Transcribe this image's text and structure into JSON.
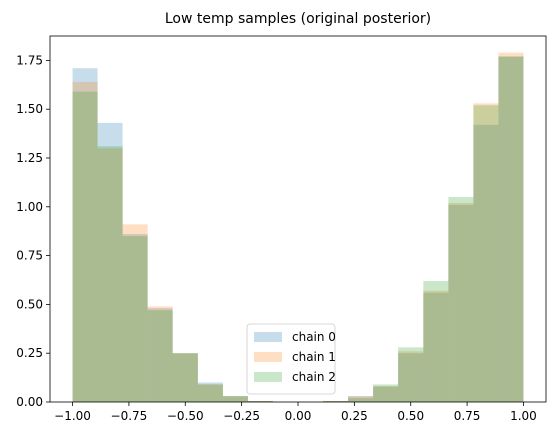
{
  "chart_data": {
    "type": "bar",
    "title": "Low temp samples (original posterior)",
    "xlabel": "",
    "ylabel": "",
    "xlim": [
      -1.1,
      1.1
    ],
    "ylim": [
      0,
      1.875
    ],
    "xticks": [
      -1.0,
      -0.75,
      -0.5,
      -0.25,
      0.0,
      0.25,
      0.5,
      0.75,
      1.0
    ],
    "xtick_labels": [
      "−1.00",
      "−0.75",
      "−0.50",
      "−0.25",
      "0.00",
      "0.25",
      "0.50",
      "0.75",
      "1.00"
    ],
    "yticks": [
      0.0,
      0.25,
      0.5,
      0.75,
      1.0,
      1.25,
      1.5,
      1.75
    ],
    "ytick_labels": [
      "0.00",
      "0.25",
      "0.50",
      "0.75",
      "1.00",
      "1.25",
      "1.50",
      "1.75"
    ],
    "grid": false,
    "legend_position": "bottom-center",
    "bin_edges": [
      -1.0,
      -0.889,
      -0.778,
      -0.667,
      -0.556,
      -0.444,
      -0.333,
      -0.222,
      -0.111,
      0.0,
      0.111,
      0.222,
      0.333,
      0.444,
      0.556,
      0.667,
      0.778,
      0.889,
      1.0
    ],
    "series": [
      {
        "name": "chain 0",
        "color": "#1f77b4",
        "alpha": 0.25,
        "values": [
          1.71,
          1.43,
          0.86,
          0.48,
          0.25,
          0.1,
          0.03,
          0.005,
          0.0,
          0.0,
          0.005,
          0.03,
          0.08,
          0.25,
          0.56,
          1.01,
          1.42,
          1.77
        ]
      },
      {
        "name": "chain 1",
        "color": "#ff7f0e",
        "alpha": 0.25,
        "values": [
          1.64,
          1.3,
          0.91,
          0.49,
          0.25,
          0.09,
          0.03,
          0.005,
          0.0,
          0.0,
          0.005,
          0.03,
          0.08,
          0.26,
          0.57,
          1.02,
          1.53,
          1.79
        ]
      },
      {
        "name": "chain 2",
        "color": "#2ca02c",
        "alpha": 0.25,
        "values": [
          1.59,
          1.31,
          0.85,
          0.47,
          0.25,
          0.09,
          0.03,
          0.005,
          0.0,
          0.0,
          0.005,
          0.02,
          0.09,
          0.28,
          0.62,
          1.05,
          1.52,
          1.77
        ]
      }
    ]
  }
}
